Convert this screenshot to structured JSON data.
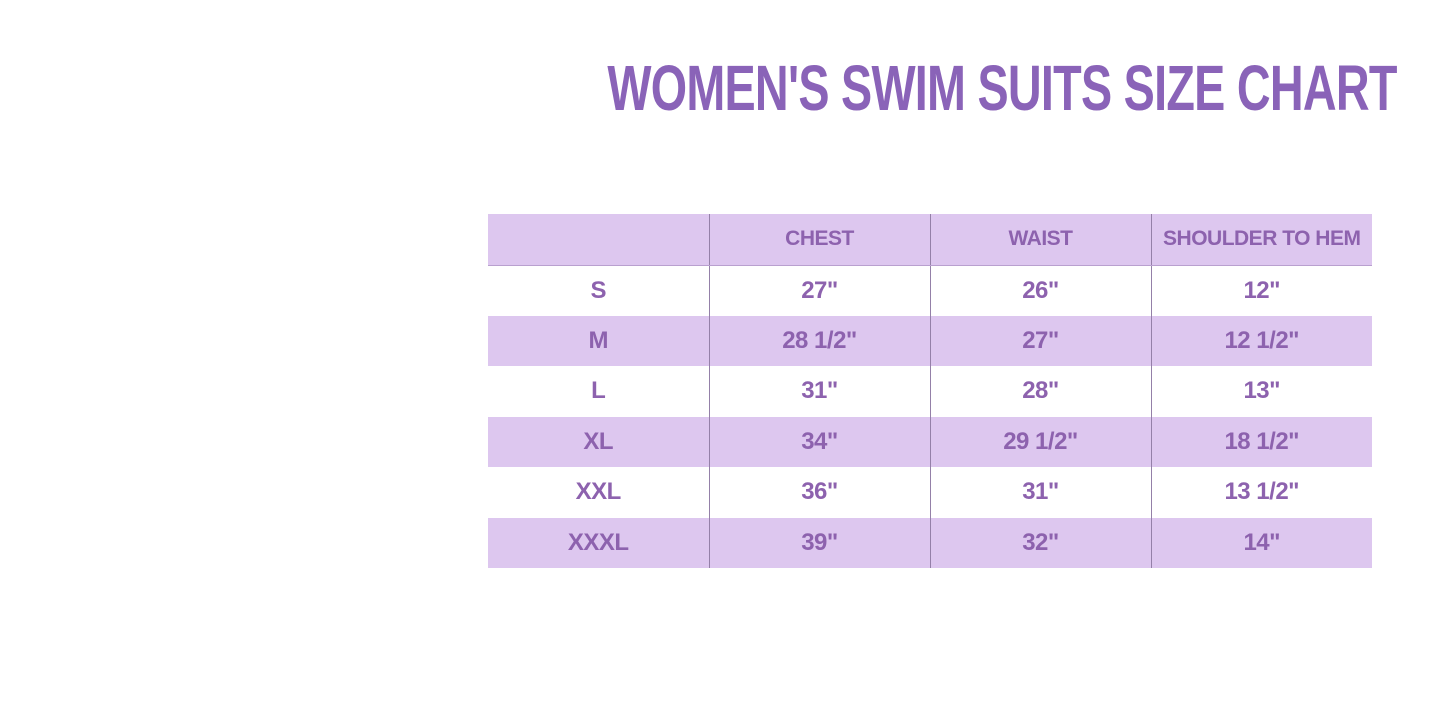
{
  "title": {
    "text": "WOMEN'S SWIM SUITS SIZE CHART"
  },
  "colors": {
    "title_color": "#8a63b8",
    "table_text": "#8d62ae",
    "lavender": "#ddc7ef",
    "divider": "#9480a8",
    "header_border": "#b9a0cf",
    "background": "#ffffff"
  },
  "chart_data": {
    "type": "table",
    "title": "WOMEN'S SWIM SUITS SIZE CHART",
    "columns": [
      "",
      "CHEST",
      "WAIST",
      "SHOULDER TO HEM"
    ],
    "rows": [
      [
        "S",
        "27\"",
        "26\"",
        "12\""
      ],
      [
        "M",
        "28 1/2\"",
        "27\"",
        "12 1/2\""
      ],
      [
        "L",
        "31\"",
        "28\"",
        "13\""
      ],
      [
        "XL",
        "34\"",
        "29 1/2\"",
        "18 1/2\""
      ],
      [
        "XXL",
        "36\"",
        "31\"",
        "13 1/2\""
      ],
      [
        "XXXL",
        "39\"",
        "32\"",
        "14\""
      ]
    ],
    "layout": {
      "grid": "vertical-dividers-only",
      "zebra_rows": [
        "M",
        "XL",
        "XXXL"
      ],
      "header_fill": "#ddc7ef"
    }
  }
}
